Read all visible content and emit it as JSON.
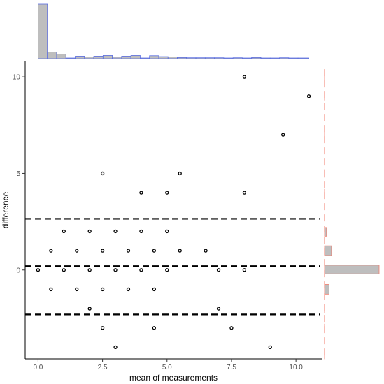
{
  "chart_data": {
    "type": "scatter",
    "title": "",
    "xlabel": "mean of measurements",
    "ylabel": "difference",
    "xlim": [
      -0.5,
      11.0
    ],
    "ylim": [
      -4.6,
      10.8
    ],
    "x_ticks": [
      0.0,
      2.5,
      5.0,
      7.5,
      10.0
    ],
    "x_tick_labels": [
      "0.0",
      "2.5",
      "5.0",
      "7.5",
      "10.0"
    ],
    "y_ticks": [
      0,
      5,
      10
    ],
    "y_tick_labels": [
      "0",
      "5",
      "10"
    ],
    "grid": false,
    "legend": "none",
    "points": [
      {
        "x": 0.0,
        "y": 0
      },
      {
        "x": 0.5,
        "y": 1
      },
      {
        "x": 0.5,
        "y": -1
      },
      {
        "x": 1.0,
        "y": 2
      },
      {
        "x": 1.0,
        "y": 0
      },
      {
        "x": 1.5,
        "y": 1
      },
      {
        "x": 1.5,
        "y": -1
      },
      {
        "x": 2.0,
        "y": 2
      },
      {
        "x": 2.0,
        "y": 0
      },
      {
        "x": 2.0,
        "y": -2
      },
      {
        "x": 2.5,
        "y": 5
      },
      {
        "x": 2.5,
        "y": 1
      },
      {
        "x": 2.5,
        "y": -1
      },
      {
        "x": 2.5,
        "y": -3
      },
      {
        "x": 3.0,
        "y": 2
      },
      {
        "x": 3.0,
        "y": 0
      },
      {
        "x": 3.0,
        "y": -4
      },
      {
        "x": 3.5,
        "y": 1
      },
      {
        "x": 3.5,
        "y": -1
      },
      {
        "x": 4.0,
        "y": 4
      },
      {
        "x": 4.0,
        "y": 2
      },
      {
        "x": 4.0,
        "y": 0
      },
      {
        "x": 4.5,
        "y": 1
      },
      {
        "x": 4.5,
        "y": -1
      },
      {
        "x": 4.5,
        "y": -3
      },
      {
        "x": 5.0,
        "y": 4
      },
      {
        "x": 5.0,
        "y": 2
      },
      {
        "x": 5.0,
        "y": 0
      },
      {
        "x": 5.5,
        "y": 5
      },
      {
        "x": 5.5,
        "y": 1
      },
      {
        "x": 6.5,
        "y": 1
      },
      {
        "x": 7.0,
        "y": 0
      },
      {
        "x": 7.0,
        "y": -2
      },
      {
        "x": 7.5,
        "y": -3
      },
      {
        "x": 8.0,
        "y": 10
      },
      {
        "x": 8.0,
        "y": 4
      },
      {
        "x": 8.0,
        "y": 0
      },
      {
        "x": 9.0,
        "y": -4
      },
      {
        "x": 9.5,
        "y": 7
      },
      {
        "x": 10.5,
        "y": 9
      }
    ],
    "reference_lines": [
      {
        "y": 2.65,
        "style": "dashed"
      },
      {
        "y": 0.2,
        "style": "dashed"
      },
      {
        "y": -2.3,
        "style": "dashed"
      }
    ],
    "top_histogram": {
      "fill": "#bebebe",
      "stroke": "#5b6ee1",
      "bin_width": 0.5,
      "bins": [
        {
          "x0": 0.0,
          "x1": 0.36,
          "count": 24
        },
        {
          "x0": 0.36,
          "x1": 0.72,
          "count": 2.9
        },
        {
          "x0": 0.72,
          "x1": 1.08,
          "count": 2.0
        },
        {
          "x0": 1.08,
          "x1": 1.44,
          "count": 0.3
        },
        {
          "x0": 1.44,
          "x1": 1.8,
          "count": 1.1
        },
        {
          "x0": 1.8,
          "x1": 2.16,
          "count": 0.8
        },
        {
          "x0": 2.16,
          "x1": 2.52,
          "count": 1.1
        },
        {
          "x0": 2.52,
          "x1": 2.88,
          "count": 1.4
        },
        {
          "x0": 2.88,
          "x1": 3.24,
          "count": 0.7
        },
        {
          "x0": 3.24,
          "x1": 3.6,
          "count": 1.1
        },
        {
          "x0": 3.6,
          "x1": 3.96,
          "count": 1.4
        },
        {
          "x0": 3.96,
          "x1": 4.32,
          "count": 0.3
        },
        {
          "x0": 4.32,
          "x1": 4.68,
          "count": 1.3
        },
        {
          "x0": 4.68,
          "x1": 5.04,
          "count": 0.9
        },
        {
          "x0": 5.04,
          "x1": 5.4,
          "count": 0.8
        },
        {
          "x0": 5.4,
          "x1": 5.76,
          "count": 0.5
        },
        {
          "x0": 5.76,
          "x1": 6.12,
          "count": 0.4
        },
        {
          "x0": 6.12,
          "x1": 6.48,
          "count": 0.4
        },
        {
          "x0": 6.48,
          "x1": 6.84,
          "count": 0.4
        },
        {
          "x0": 6.84,
          "x1": 7.2,
          "count": 0.4
        },
        {
          "x0": 7.2,
          "x1": 7.56,
          "count": 0.3
        },
        {
          "x0": 7.56,
          "x1": 7.92,
          "count": 0.4
        },
        {
          "x0": 7.92,
          "x1": 8.28,
          "count": 0.3
        },
        {
          "x0": 8.28,
          "x1": 8.64,
          "count": 0.5
        },
        {
          "x0": 8.64,
          "x1": 9.0,
          "count": 0.3
        },
        {
          "x0": 9.0,
          "x1": 9.36,
          "count": 0.3
        },
        {
          "x0": 9.36,
          "x1": 9.72,
          "count": 0.4
        },
        {
          "x0": 9.72,
          "x1": 10.08,
          "count": 0.3
        },
        {
          "x0": 10.08,
          "x1": 10.5,
          "count": 0.3
        }
      ],
      "max_count": 24
    },
    "right_histogram": {
      "fill": "#bebebe",
      "stroke": "#f07c6c",
      "bins": [
        {
          "y0": -4.6,
          "y1": -4.2,
          "count": 0
        },
        {
          "y0": -3.2,
          "y1": -2.8,
          "count": 0
        },
        {
          "y0": -2.2,
          "y1": -1.8,
          "count": 0
        },
        {
          "y0": -1.25,
          "y1": -0.75,
          "count": 1.8
        },
        {
          "y0": -0.2,
          "y1": 0.25,
          "count": 22
        },
        {
          "y0": 0.75,
          "y1": 1.25,
          "count": 2.8
        },
        {
          "y0": 1.75,
          "y1": 2.2,
          "count": 0.8
        },
        {
          "y0": 3.8,
          "y1": 4.2,
          "count": 0
        },
        {
          "y0": 4.8,
          "y1": 5.2,
          "count": 0
        },
        {
          "y0": 6.8,
          "y1": 7.2,
          "count": 0
        },
        {
          "y0": 8.8,
          "y1": 9.2,
          "count": 0
        },
        {
          "y0": 9.8,
          "y1": 10.2,
          "count": 0
        }
      ],
      "max_count": 22
    }
  }
}
